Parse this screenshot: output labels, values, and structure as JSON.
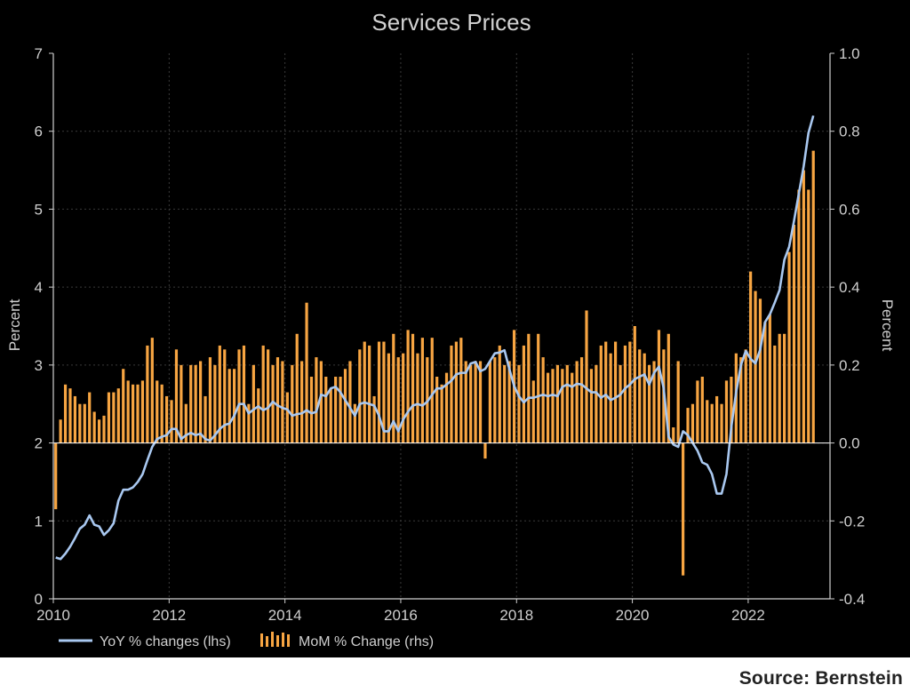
{
  "source": "Source: Bernstein",
  "colors": {
    "background": "#000000",
    "text": "#cfcfcf",
    "bar": "#f7a542",
    "line": "#a9c8f0",
    "grid": "#3a3a3a"
  },
  "chart_data": {
    "type": "bar",
    "title": "Services Prices",
    "ylabel_left": "Percent",
    "ylabel_right": "Percent",
    "ylim_left": [
      0,
      7
    ],
    "ylim_right": [
      -0.4,
      1.0
    ],
    "yticks_left": [
      "0",
      "1",
      "2",
      "3",
      "4",
      "5",
      "6",
      "7"
    ],
    "yticks_right": [
      "-0.4",
      "-0.2",
      "0.0",
      "0.2",
      "0.4",
      "0.6",
      "0.8",
      "1.0"
    ],
    "xticks": [
      "2010",
      "2012",
      "2014",
      "2016",
      "2018",
      "2020",
      "2022"
    ],
    "grid": true,
    "legend_position": "bottom-left",
    "x_start": "2010-01",
    "series": [
      {
        "name": "MoM % Change (rhs)",
        "type": "bar",
        "axis": "right",
        "values": [
          -0.17,
          0.06,
          0.15,
          0.14,
          0.12,
          0.1,
          0.1,
          0.13,
          0.08,
          0.06,
          0.07,
          0.13,
          0.13,
          0.14,
          0.19,
          0.16,
          0.15,
          0.15,
          0.16,
          0.25,
          0.27,
          0.16,
          0.15,
          0.12,
          0.11,
          0.24,
          0.2,
          0.1,
          0.2,
          0.2,
          0.21,
          0.12,
          0.22,
          0.2,
          0.25,
          0.24,
          0.19,
          0.19,
          0.24,
          0.25,
          0.1,
          0.2,
          0.14,
          0.25,
          0.24,
          0.2,
          0.22,
          0.21,
          0.13,
          0.2,
          0.28,
          0.21,
          0.36,
          0.17,
          0.22,
          0.21,
          0.17,
          0.14,
          0.17,
          0.17,
          0.19,
          0.21,
          0.1,
          0.24,
          0.26,
          0.25,
          0.12,
          0.26,
          0.26,
          0.23,
          0.28,
          0.22,
          0.23,
          0.29,
          0.28,
          0.23,
          0.27,
          0.22,
          0.27,
          0.17,
          0.15,
          0.18,
          0.25,
          0.26,
          0.27,
          0.21,
          0.2,
          0.21,
          0.21,
          -0.04,
          0.21,
          0.22,
          0.25,
          0.2,
          0.21,
          0.29,
          0.2,
          0.25,
          0.28,
          0.16,
          0.28,
          0.22,
          0.18,
          0.19,
          0.2,
          0.19,
          0.2,
          0.18,
          0.21,
          0.22,
          0.34,
          0.19,
          0.2,
          0.25,
          0.26,
          0.23,
          0.26,
          0.2,
          0.25,
          0.26,
          0.3,
          0.24,
          0.23,
          0.2,
          0.21,
          0.29,
          0.24,
          0.28,
          0.04,
          0.21,
          -0.34,
          0.09,
          0.1,
          0.16,
          0.17,
          0.11,
          0.1,
          0.12,
          0.1,
          0.16,
          0.17,
          0.23,
          0.22,
          0.24,
          0.44,
          0.39,
          0.37,
          0.31,
          0.33,
          0.25,
          0.28,
          0.28,
          0.49,
          0.56,
          0.65,
          0.7,
          0.65,
          0.75
        ]
      },
      {
        "name": "YoY % changes (lhs)",
        "type": "line",
        "axis": "left",
        "values": [
          0.53,
          0.51,
          0.58,
          0.67,
          0.78,
          0.9,
          0.95,
          1.07,
          0.95,
          0.93,
          0.82,
          0.88,
          0.97,
          1.26,
          1.4,
          1.4,
          1.43,
          1.5,
          1.6,
          1.78,
          1.95,
          2.05,
          2.08,
          2.1,
          2.18,
          2.18,
          2.05,
          2.1,
          2.13,
          2.1,
          2.12,
          2.05,
          2.03,
          2.1,
          2.18,
          2.23,
          2.25,
          2.35,
          2.5,
          2.5,
          2.38,
          2.43,
          2.47,
          2.42,
          2.45,
          2.53,
          2.48,
          2.45,
          2.43,
          2.35,
          2.37,
          2.38,
          2.42,
          2.38,
          2.4,
          2.62,
          2.6,
          2.7,
          2.72,
          2.65,
          2.55,
          2.45,
          2.35,
          2.5,
          2.52,
          2.5,
          2.48,
          2.35,
          2.15,
          2.15,
          2.28,
          2.15,
          2.3,
          2.4,
          2.48,
          2.5,
          2.48,
          2.53,
          2.62,
          2.7,
          2.7,
          2.75,
          2.8,
          2.88,
          2.9,
          2.9,
          3.02,
          3.04,
          2.92,
          2.95,
          3.05,
          3.15,
          3.16,
          3.19,
          2.95,
          2.73,
          2.6,
          2.52,
          2.58,
          2.58,
          2.6,
          2.62,
          2.6,
          2.62,
          2.6,
          2.72,
          2.75,
          2.72,
          2.76,
          2.75,
          2.7,
          2.65,
          2.65,
          2.58,
          2.62,
          2.55,
          2.58,
          2.62,
          2.7,
          2.75,
          2.82,
          2.85,
          2.88,
          2.75,
          2.9,
          2.98,
          2.7,
          2.08,
          1.98,
          1.95,
          2.15,
          2.1,
          2.0,
          1.9,
          1.75,
          1.72,
          1.6,
          1.35,
          1.35,
          1.6,
          2.2,
          2.65,
          3.0,
          3.18,
          3.08,
          3.02,
          3.2,
          3.55,
          3.65,
          3.8,
          3.96,
          4.35,
          4.52,
          4.85,
          5.2,
          5.55,
          5.98,
          6.2
        ]
      }
    ]
  }
}
